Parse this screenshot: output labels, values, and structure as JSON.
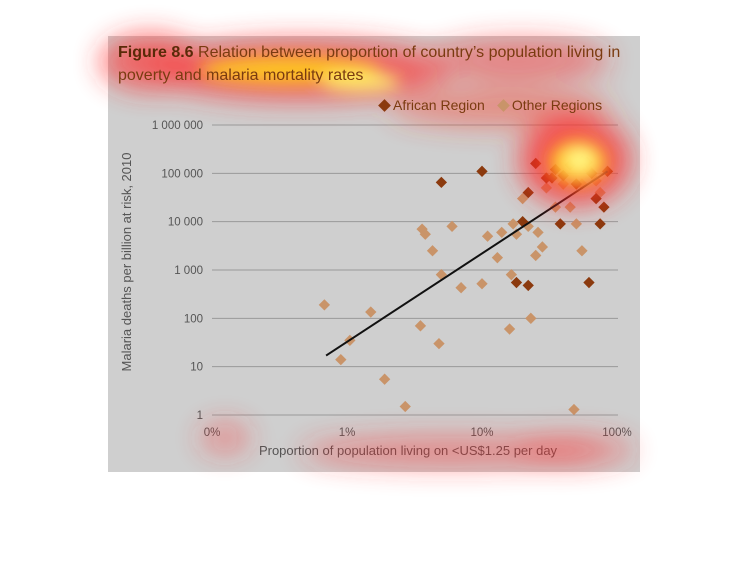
{
  "figure": {
    "number": "Figure 8.6",
    "caption": "Relation between proportion of country’s population living in poverty and malaria mortality rates"
  },
  "chart_data": {
    "type": "scatter",
    "title": "Figure 8.6 Relation between proportion of country’s population living in poverty and malaria mortality rates",
    "xlabel": "Proportion of population living on <US$1.25 per day",
    "ylabel": "Malaria deaths per billion at risk, 2010",
    "x_scale": "log",
    "y_scale": "log",
    "x_ticks": [
      "0%",
      "1%",
      "10%",
      "100%"
    ],
    "y_ticks": [
      "1",
      "10",
      "100",
      "1 000",
      "10 000",
      "100 000",
      "1 000 000"
    ],
    "xlim": [
      "0%",
      "100%"
    ],
    "ylim": [
      1,
      1000000
    ],
    "grid": "horizontal",
    "legend_position": "top-right",
    "series": [
      {
        "name": "African Region",
        "color": "#8b3a0e",
        "points": [
          [
            5,
            65000
          ],
          [
            10,
            110000
          ],
          [
            22,
            40000
          ],
          [
            25,
            160000
          ],
          [
            30,
            80000
          ],
          [
            33,
            80000
          ],
          [
            35,
            120000
          ],
          [
            40,
            90000
          ],
          [
            45,
            150000
          ],
          [
            50,
            60000
          ],
          [
            55,
            180000
          ],
          [
            60,
            170000
          ],
          [
            65,
            100000
          ],
          [
            70,
            30000
          ],
          [
            75,
            9000
          ],
          [
            80,
            20000
          ],
          [
            85,
            110000
          ],
          [
            38,
            9000
          ],
          [
            20,
            10000
          ],
          [
            22,
            480
          ],
          [
            18,
            550
          ],
          [
            62,
            550
          ]
        ]
      },
      {
        "name": "Other Regions",
        "color": "#c99469",
        "points": [
          [
            0.68,
            190
          ],
          [
            0.9,
            14
          ],
          [
            1.05,
            35
          ],
          [
            1.5,
            135
          ],
          [
            1.9,
            5.5
          ],
          [
            2.7,
            1.5
          ],
          [
            3.5,
            70
          ],
          [
            3.6,
            7000
          ],
          [
            3.8,
            5500
          ],
          [
            4.3,
            2500
          ],
          [
            4.8,
            30
          ],
          [
            5,
            800
          ],
          [
            6,
            8000
          ],
          [
            7,
            430
          ],
          [
            10,
            520
          ],
          [
            11,
            5000
          ],
          [
            13,
            1800
          ],
          [
            14,
            6000
          ],
          [
            16,
            60
          ],
          [
            16.5,
            800
          ],
          [
            17,
            9000
          ],
          [
            18,
            5500
          ],
          [
            20,
            30000
          ],
          [
            22,
            8000
          ],
          [
            23,
            100
          ],
          [
            25,
            2000
          ],
          [
            26,
            6000
          ],
          [
            28,
            3000
          ],
          [
            30,
            50000
          ],
          [
            35,
            20000
          ],
          [
            40,
            60000
          ],
          [
            45,
            20000
          ],
          [
            48,
            1.3
          ],
          [
            50,
            9000
          ],
          [
            55,
            2500
          ],
          [
            55,
            60000
          ],
          [
            60,
            130000
          ],
          [
            65,
            100000
          ],
          [
            70,
            70000
          ],
          [
            75,
            40000
          ]
        ]
      }
    ],
    "trendline": {
      "color": "#111111",
      "from": [
        0.7,
        17
      ],
      "to": [
        85,
        110000
      ]
    }
  },
  "heatmap": {
    "hotspots": [
      {
        "region": "figure-title",
        "intensity": "high"
      },
      {
        "region": "top-right-cluster",
        "intensity": "highest"
      },
      {
        "region": "x-axis-label",
        "intensity": "medium"
      },
      {
        "region": "legend",
        "intensity": "medium"
      }
    ]
  }
}
